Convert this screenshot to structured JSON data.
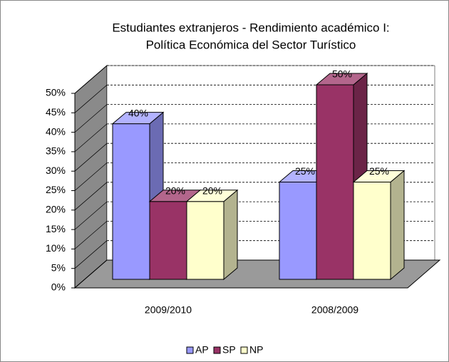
{
  "chart_data": {
    "type": "bar3d",
    "title": "Estudiantes extranjeros - Rendimiento académico I:",
    "subtitle": "Política Económica del Sector Turístico",
    "categories": [
      "2009/2010",
      "2008/2009"
    ],
    "series": [
      {
        "name": "AP",
        "color": "#9999ff",
        "values": [
          40,
          25
        ],
        "value_labels": [
          "40%",
          "25%"
        ]
      },
      {
        "name": "SP",
        "color": "#993366",
        "values": [
          20,
          50
        ],
        "value_labels": [
          "20%",
          "50%"
        ]
      },
      {
        "name": "NP",
        "color": "#ffffcc",
        "values": [
          20,
          25
        ],
        "value_labels": [
          "20%",
          "25%"
        ]
      }
    ],
    "ylim": [
      0,
      50
    ],
    "yticks": [
      {
        "value": 0,
        "label": "0%"
      },
      {
        "value": 5,
        "label": "5%"
      },
      {
        "value": 10,
        "label": "10%"
      },
      {
        "value": 15,
        "label": "15%"
      },
      {
        "value": 20,
        "label": "20%"
      },
      {
        "value": 25,
        "label": "25%"
      },
      {
        "value": 30,
        "label": "30%"
      },
      {
        "value": 35,
        "label": "35%"
      },
      {
        "value": 40,
        "label": "40%"
      },
      {
        "value": 45,
        "label": "45%"
      },
      {
        "value": 50,
        "label": "50%"
      }
    ],
    "grid": true,
    "legend": "bottom"
  }
}
